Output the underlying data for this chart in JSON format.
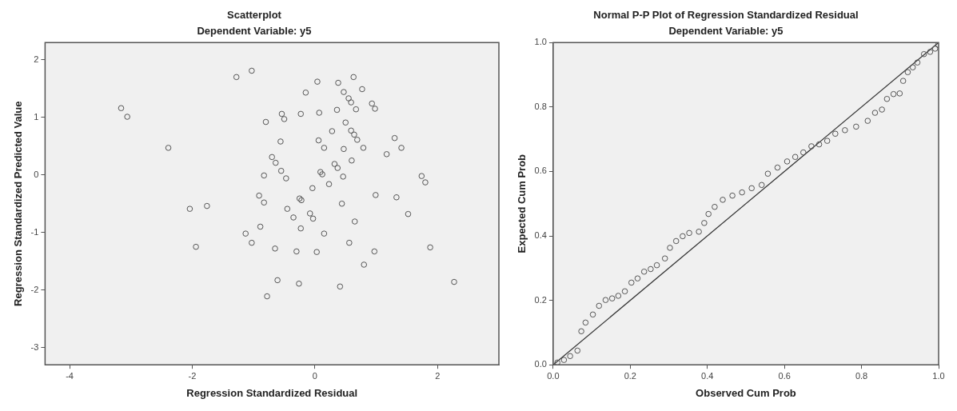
{
  "chart_data": [
    {
      "type": "scatter",
      "title": "Scatterplot",
      "subtitle": "Dependent Variable: y5",
      "xlabel": "Regression Standardized Residual",
      "ylabel": "Regression Standardized Predicted Value",
      "xlim": [
        -4.4,
        3.0
      ],
      "ylim": [
        -3.3,
        2.3
      ],
      "xticks": [
        -4,
        -2,
        0,
        2
      ],
      "yticks": [
        -3,
        -2,
        -1,
        0,
        1,
        2
      ],
      "grid": false,
      "legend": false,
      "marker": "circle",
      "x": [
        -3.16,
        -3.06,
        -2.39,
        -1.28,
        -1.03,
        -2.04,
        -1.76,
        -1.94,
        -1.13,
        -1.03,
        -0.89,
        -0.91,
        -0.83,
        -0.83,
        -0.8,
        -0.78,
        0.04,
        0.38,
        0.63,
        0.77,
        -0.15,
        0.47,
        0.55,
        0.59,
        0.93,
        0.98,
        0.67,
        0.36,
        0.07,
        -0.23,
        -0.54,
        -0.5,
        0.5,
        0.28,
        0.59,
        0.64,
        0.69,
        -0.56,
        0.06,
        0.15,
        0.47,
        0.79,
        1.3,
        1.41,
        1.17,
        0.6,
        -0.7,
        -0.64,
        -0.55,
        -0.47,
        0.32,
        0.37,
        0.09,
        0.12,
        0.46,
        0.23,
        -0.04,
        1.74,
        1.8,
        0.99,
        1.33,
        -0.25,
        -0.22,
        0.44,
        -0.45,
        1.52,
        -0.08,
        -0.03,
        -0.35,
        0.65,
        -0.23,
        0.15,
        0.56,
        -0.65,
        -0.3,
        0.03,
        0.97,
        1.88,
        0.8,
        -0.61,
        -0.26,
        0.41,
        2.27
      ],
      "series": [
        {
          "color": "#555555",
          "values": [
            1.16,
            1.01,
            0.47,
            1.7,
            1.81,
            -0.59,
            -0.54,
            -1.25,
            -1.02,
            -1.18,
            -0.9,
            -0.36,
            -0.48,
            -0.01,
            0.92,
            -2.11,
            1.62,
            1.6,
            1.7,
            1.49,
            1.43,
            1.44,
            1.33,
            1.26,
            1.24,
            1.15,
            1.14,
            1.13,
            1.08,
            1.06,
            1.06,
            0.97,
            0.91,
            0.76,
            0.77,
            0.7,
            0.61,
            0.58,
            0.6,
            0.47,
            0.45,
            0.47,
            0.64,
            0.47,
            0.36,
            0.25,
            0.31,
            0.21,
            0.07,
            -0.06,
            0.19,
            0.12,
            0.05,
            0.01,
            -0.03,
            -0.16,
            -0.23,
            -0.02,
            -0.13,
            -0.35,
            -0.39,
            -0.41,
            -0.44,
            -0.5,
            -0.59,
            -0.68,
            -0.67,
            -0.76,
            -0.74,
            -0.81,
            -0.93,
            -1.02,
            -1.18,
            -1.28,
            -1.33,
            -1.34,
            -1.33,
            -1.26,
            -1.56,
            -1.83,
            -1.89,
            -1.94,
            -1.86
          ]
        }
      ]
    },
    {
      "type": "scatter",
      "title": "Normal P-P Plot of Regression Standardized Residual",
      "subtitle": "Dependent Variable: y5",
      "xlabel": "Observed Cum Prob",
      "ylabel": "Expected Cum Prob",
      "xlim": [
        0,
        1
      ],
      "ylim": [
        0,
        1
      ],
      "xticks": [
        {
          "value": 0,
          "label": "0.0"
        },
        0.2,
        0.4,
        0.6,
        0.8,
        {
          "value": 1,
          "label": "1.0"
        }
      ],
      "yticks": [
        {
          "value": 0,
          "label": "0.0"
        },
        0.2,
        0.4,
        0.6,
        0.8,
        {
          "value": 1,
          "label": "1.0"
        }
      ],
      "grid": false,
      "legend": false,
      "series": [
        {
          "color": "#555555",
          "marker": "circle",
          "x": [
            0.011,
            0.028,
            0.044,
            0.063,
            0.073,
            0.084,
            0.103,
            0.119,
            0.136,
            0.153,
            0.169,
            0.186,
            0.203,
            0.219,
            0.236,
            0.253,
            0.269,
            0.29,
            0.303,
            0.319,
            0.336,
            0.353,
            0.378,
            0.392,
            0.403,
            0.419,
            0.44,
            0.465,
            0.49,
            0.515,
            0.541,
            0.557,
            0.582,
            0.607,
            0.628,
            0.649,
            0.67,
            0.69,
            0.711,
            0.732,
            0.757,
            0.786,
            0.816,
            0.835,
            0.853,
            0.866,
            0.883,
            0.899,
            0.908,
            0.92,
            0.933,
            0.945,
            0.962,
            0.978,
            0.991,
            0.999
          ],
          "values": [
            0.007,
            0.015,
            0.027,
            0.044,
            0.104,
            0.131,
            0.156,
            0.183,
            0.201,
            0.206,
            0.214,
            0.228,
            0.255,
            0.268,
            0.289,
            0.297,
            0.309,
            0.33,
            0.363,
            0.384,
            0.399,
            0.409,
            0.413,
            0.44,
            0.468,
            0.49,
            0.512,
            0.525,
            0.535,
            0.548,
            0.558,
            0.593,
            0.612,
            0.631,
            0.645,
            0.659,
            0.678,
            0.684,
            0.695,
            0.717,
            0.728,
            0.739,
            0.757,
            0.782,
            0.792,
            0.825,
            0.84,
            0.842,
            0.881,
            0.908,
            0.923,
            0.938,
            0.964,
            0.971,
            0.981,
            0.993
          ]
        },
        {
          "type": "line",
          "marker": "none",
          "color": "#333333",
          "x": [
            0,
            1
          ],
          "values": [
            0,
            1
          ]
        }
      ]
    }
  ]
}
